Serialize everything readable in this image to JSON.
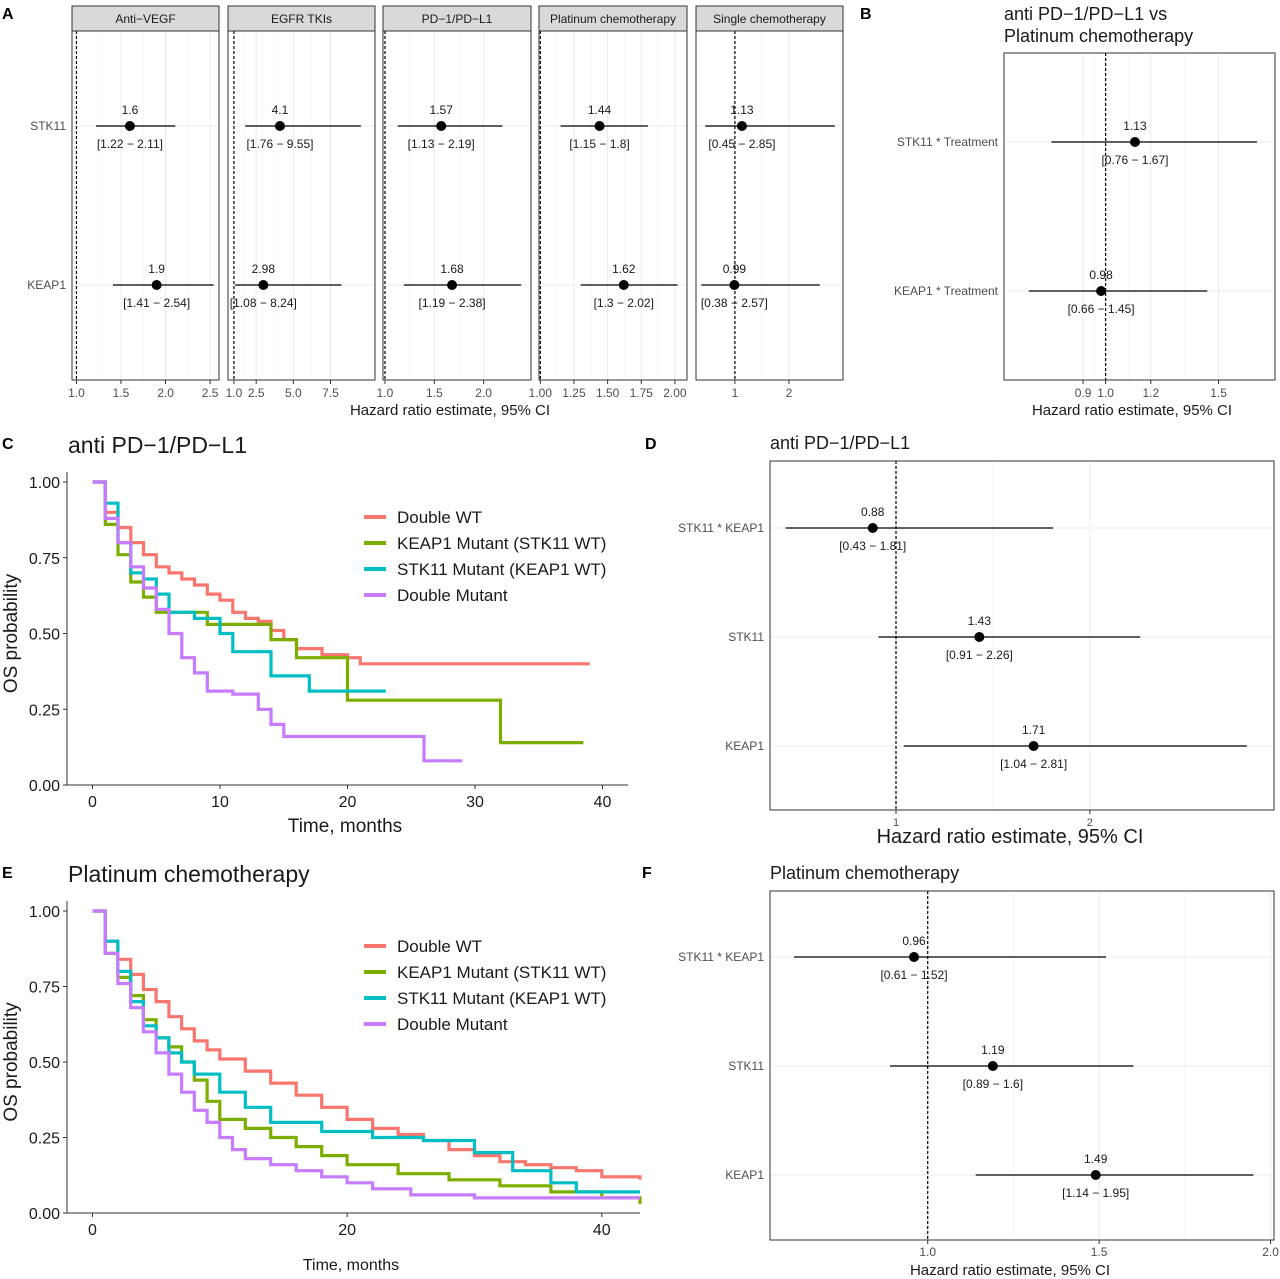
{
  "colors": {
    "double_wt": "#F8766D",
    "keap1_mut": "#7CAE00",
    "stk11_mut": "#00BFC4",
    "double_mut": "#C77CFF",
    "facet_strip_bg": "#D9D9D9",
    "grid": "#EBEBEB"
  },
  "chart_data": [
    {
      "panel": "A",
      "type": "forest",
      "xlabel": "Hazard ratio estimate, 95% CI",
      "row_labels": [
        "STK11",
        "KEAP1"
      ],
      "facets": [
        {
          "name": "Anti−VEGF",
          "xlim": [
            0.95,
            2.6
          ],
          "ticks": [
            1.0,
            1.5,
            2.0,
            2.5
          ],
          "tick_labels": [
            "1.0",
            "1.5",
            "2.0",
            "2.5"
          ],
          "ref": 1,
          "rows": [
            {
              "label": "STK11",
              "est": 1.6,
              "lo": 1.22,
              "hi": 2.11,
              "est_text": "1.6",
              "ci_text": "[1.22 − 2.11]"
            },
            {
              "label": "KEAP1",
              "est": 1.9,
              "lo": 1.41,
              "hi": 2.54,
              "est_text": "1.9",
              "ci_text": "[1.41 − 2.54]"
            }
          ]
        },
        {
          "name": "EGFR TKIs",
          "xlim": [
            0.6,
            10.5
          ],
          "ticks": [
            1.0,
            2.5,
            5.0,
            7.5
          ],
          "tick_labels": [
            "1.0",
            "2.5",
            "5.0",
            "7.5"
          ],
          "ref": 1,
          "rows": [
            {
              "label": "STK11",
              "est": 4.1,
              "lo": 1.76,
              "hi": 9.55,
              "est_text": "4.1",
              "ci_text": "[1.76 − 9.55]"
            },
            {
              "label": "KEAP1",
              "est": 2.98,
              "lo": 1.08,
              "hi": 8.24,
              "est_text": "2.98",
              "ci_text": "[1.08 − 8.24]"
            }
          ]
        },
        {
          "name": "PD−1/PD−L1",
          "xlim": [
            0.98,
            2.48
          ],
          "ticks": [
            1.0,
            1.5,
            2.0
          ],
          "tick_labels": [
            "1.0",
            "1.5",
            "2.0"
          ],
          "ref": 1,
          "rows": [
            {
              "label": "STK11",
              "est": 1.57,
              "lo": 1.13,
              "hi": 2.19,
              "est_text": "1.57",
              "ci_text": "[1.13 − 2.19]"
            },
            {
              "label": "KEAP1",
              "est": 1.68,
              "lo": 1.19,
              "hi": 2.38,
              "est_text": "1.68",
              "ci_text": "[1.19 − 2.38]"
            }
          ]
        },
        {
          "name": "Platinum chemotherapy",
          "xlim": [
            0.99,
            2.09
          ],
          "ticks": [
            1.0,
            1.25,
            1.5,
            1.75,
            2.0
          ],
          "tick_labels": [
            "1.00",
            "1.25",
            "1.50",
            "1.75",
            "2.00"
          ],
          "ref": 1,
          "rows": [
            {
              "label": "STK11",
              "est": 1.44,
              "lo": 1.15,
              "hi": 1.8,
              "est_text": "1.44",
              "ci_text": "[1.15 − 1.8]"
            },
            {
              "label": "KEAP1",
              "est": 1.62,
              "lo": 1.3,
              "hi": 2.02,
              "est_text": "1.62",
              "ci_text": "[1.3 − 2.02]"
            }
          ]
        },
        {
          "name": "Single chemotherapy",
          "xlim": [
            0.28,
            3.0
          ],
          "ticks": [
            1,
            2
          ],
          "tick_labels": [
            "1",
            "2"
          ],
          "ref": 1,
          "rows": [
            {
              "label": "STK11",
              "est": 1.13,
              "lo": 0.45,
              "hi": 2.85,
              "est_text": "1.13",
              "ci_text": "[0.45 − 2.85]"
            },
            {
              "label": "KEAP1",
              "est": 0.99,
              "lo": 0.38,
              "hi": 2.57,
              "est_text": "0.99",
              "ci_text": "[0.38 − 2.57]"
            }
          ]
        }
      ]
    },
    {
      "panel": "B",
      "type": "forest",
      "title": "anti PD−1/PD−L1 vs\nPlatinum chemotherapy",
      "xlabel": "Hazard ratio estimate, 95% CI",
      "xlim": [
        0.55,
        1.75
      ],
      "ticks": [
        0.9,
        1.0,
        1.2,
        1.5
      ],
      "tick_labels": [
        "0.9",
        "1.0",
        "1.2",
        "1.5"
      ],
      "ref": 1,
      "rows": [
        {
          "label": "STK11 * Treatment",
          "est": 1.13,
          "lo": 0.76,
          "hi": 1.67,
          "est_text": "1.13",
          "ci_text": "[0.76 − 1.67]"
        },
        {
          "label": "KEAP1 * Treatment",
          "est": 0.98,
          "lo": 0.66,
          "hi": 1.45,
          "est_text": "0.98",
          "ci_text": "[0.66 − 1.45]"
        }
      ]
    },
    {
      "panel": "C",
      "type": "line",
      "subtype": "kaplan-meier",
      "title": "anti PD−1/PD−L1",
      "xlabel": "Time, months",
      "ylabel": "OS probability",
      "xlim": [
        -2,
        42
      ],
      "ylim": [
        0,
        1
      ],
      "xticks": [
        0,
        10,
        20,
        30,
        40
      ],
      "yticks": [
        0,
        0.25,
        0.5,
        0.75,
        1.0
      ],
      "ytick_labels": [
        "0.00",
        "0.25",
        "0.50",
        "0.75",
        "1.00"
      ],
      "legend_position": "top-right",
      "series": [
        {
          "name": "Double WT",
          "color_key": "double_wt",
          "x": [
            0,
            1,
            2,
            3,
            4,
            5,
            6,
            7,
            8,
            9,
            10,
            11,
            12,
            13,
            14,
            15,
            16,
            18,
            20,
            21,
            39
          ],
          "y": [
            1.0,
            0.9,
            0.85,
            0.8,
            0.76,
            0.72,
            0.7,
            0.68,
            0.66,
            0.63,
            0.61,
            0.57,
            0.55,
            0.54,
            0.51,
            0.48,
            0.45,
            0.43,
            0.42,
            0.4,
            0.4
          ]
        },
        {
          "name": "KEAP1 Mutant (STK11 WT)",
          "color_key": "keap1_mut",
          "x": [
            0,
            1,
            2,
            3,
            4,
            5,
            7,
            9,
            14,
            16,
            20,
            32,
            38.5
          ],
          "y": [
            1.0,
            0.86,
            0.76,
            0.67,
            0.62,
            0.57,
            0.57,
            0.53,
            0.48,
            0.42,
            0.28,
            0.14,
            0.14
          ]
        },
        {
          "name": "STK11 Mutant (KEAP1 WT)",
          "color_key": "stk11_mut",
          "x": [
            0,
            1,
            2,
            3,
            4,
            5,
            6,
            8,
            10,
            11,
            14,
            17,
            23
          ],
          "y": [
            1.0,
            0.93,
            0.8,
            0.7,
            0.68,
            0.63,
            0.57,
            0.55,
            0.5,
            0.44,
            0.36,
            0.31,
            0.31
          ]
        },
        {
          "name": "Double Mutant",
          "color_key": "double_mut",
          "x": [
            0,
            1,
            2,
            3,
            4,
            5,
            6,
            7,
            8,
            9,
            11,
            13,
            14,
            15,
            25,
            26,
            29
          ],
          "y": [
            1.0,
            0.88,
            0.8,
            0.72,
            0.65,
            0.58,
            0.5,
            0.42,
            0.37,
            0.31,
            0.3,
            0.25,
            0.2,
            0.16,
            0.16,
            0.08,
            0.08
          ]
        }
      ]
    },
    {
      "panel": "D",
      "type": "forest",
      "title": "anti PD−1/PD−L1",
      "xlabel": "Hazard ratio estimate, 95% CI",
      "xlim": [
        0.35,
        2.95
      ],
      "ticks": [
        1,
        2
      ],
      "tick_labels": [
        "1",
        "2"
      ],
      "ref": 1,
      "rows": [
        {
          "label": "STK11 * KEAP1",
          "est": 0.88,
          "lo": 0.43,
          "hi": 1.81,
          "est_text": "0.88",
          "ci_text": "[0.43 − 1.81]"
        },
        {
          "label": "STK11",
          "est": 1.43,
          "lo": 0.91,
          "hi": 2.26,
          "est_text": "1.43",
          "ci_text": "[0.91 − 2.26]"
        },
        {
          "label": "KEAP1",
          "est": 1.71,
          "lo": 1.04,
          "hi": 2.81,
          "est_text": "1.71",
          "ci_text": "[1.04 − 2.81]"
        }
      ]
    },
    {
      "panel": "E",
      "type": "line",
      "subtype": "kaplan-meier",
      "title": "Platinum chemotherapy",
      "xlabel": "Time, months",
      "ylabel": "OS probability",
      "xlim": [
        -2,
        43
      ],
      "ylim": [
        0,
        1
      ],
      "xticks": [
        0,
        20,
        40
      ],
      "yticks": [
        0,
        0.25,
        0.5,
        0.75,
        1.0
      ],
      "ytick_labels": [
        "0.00",
        "0.25",
        "0.50",
        "0.75",
        "1.00"
      ],
      "legend_position": "top-right",
      "series": [
        {
          "name": "Double WT",
          "color_key": "double_wt",
          "x": [
            0,
            1,
            2,
            3,
            4,
            5,
            6,
            7,
            8,
            9,
            10,
            12,
            14,
            16,
            18,
            20,
            22,
            24,
            26,
            28,
            30,
            32,
            34,
            36,
            38,
            40,
            43
          ],
          "y": [
            1.0,
            0.9,
            0.84,
            0.79,
            0.74,
            0.7,
            0.65,
            0.61,
            0.57,
            0.54,
            0.51,
            0.47,
            0.43,
            0.39,
            0.35,
            0.31,
            0.28,
            0.26,
            0.24,
            0.21,
            0.19,
            0.17,
            0.16,
            0.15,
            0.14,
            0.12,
            0.11
          ]
        },
        {
          "name": "KEAP1 Mutant (STK11 WT)",
          "color_key": "keap1_mut",
          "x": [
            0,
            1,
            2,
            3,
            4,
            5,
            6,
            7,
            8,
            9,
            10,
            12,
            14,
            16,
            18,
            20,
            24,
            28,
            32,
            36,
            40,
            43
          ],
          "y": [
            1.0,
            0.86,
            0.78,
            0.72,
            0.64,
            0.58,
            0.55,
            0.5,
            0.44,
            0.37,
            0.31,
            0.28,
            0.25,
            0.22,
            0.19,
            0.16,
            0.13,
            0.11,
            0.09,
            0.07,
            0.05,
            0.03
          ]
        },
        {
          "name": "STK11 Mutant (KEAP1 WT)",
          "color_key": "stk11_mut",
          "x": [
            0,
            1,
            2,
            3,
            4,
            5,
            6,
            7,
            8,
            10,
            12,
            14,
            18,
            22,
            26,
            30,
            33,
            36,
            38,
            43
          ],
          "y": [
            1.0,
            0.9,
            0.8,
            0.7,
            0.62,
            0.58,
            0.53,
            0.5,
            0.46,
            0.4,
            0.35,
            0.3,
            0.27,
            0.25,
            0.24,
            0.2,
            0.14,
            0.1,
            0.07,
            0.07
          ]
        },
        {
          "name": "Double Mutant",
          "color_key": "double_mut",
          "x": [
            0,
            1,
            2,
            3,
            4,
            5,
            6,
            7,
            8,
            9,
            10,
            11,
            12,
            14,
            16,
            18,
            20,
            22,
            25,
            30,
            35,
            40,
            43
          ],
          "y": [
            1.0,
            0.86,
            0.76,
            0.68,
            0.6,
            0.53,
            0.46,
            0.4,
            0.34,
            0.3,
            0.25,
            0.21,
            0.18,
            0.16,
            0.14,
            0.12,
            0.1,
            0.08,
            0.06,
            0.05,
            0.05,
            0.05,
            0.05
          ]
        }
      ]
    },
    {
      "panel": "F",
      "type": "forest",
      "title": "Platinum chemotherapy",
      "xlabel": "Hazard ratio estimate, 95% CI",
      "xlim": [
        0.54,
        2.01
      ],
      "ticks": [
        1.0,
        1.5,
        2.0
      ],
      "tick_labels": [
        "1.0",
        "1.5",
        "2.0"
      ],
      "ref": 1,
      "rows": [
        {
          "label": "STK11 * KEAP1",
          "est": 0.96,
          "lo": 0.61,
          "hi": 1.52,
          "est_text": "0.96",
          "ci_text": "[0.61 − 1.52]"
        },
        {
          "label": "STK11",
          "est": 1.19,
          "lo": 0.89,
          "hi": 1.6,
          "est_text": "1.19",
          "ci_text": "[0.89 − 1.6]"
        },
        {
          "label": "KEAP1",
          "est": 1.49,
          "lo": 1.14,
          "hi": 1.95,
          "est_text": "1.49",
          "ci_text": "[1.14 − 1.95]"
        }
      ]
    }
  ],
  "panel_letters": {
    "a": "A",
    "b": "B",
    "c": "C",
    "d": "D",
    "e": "E",
    "f": "F"
  }
}
